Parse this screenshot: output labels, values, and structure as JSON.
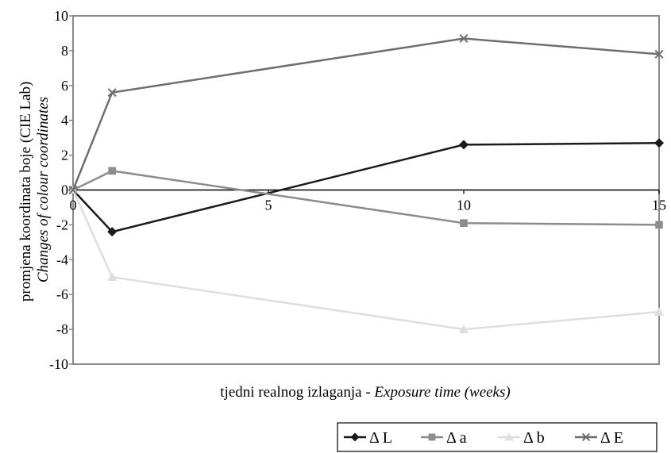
{
  "chart_data": {
    "type": "line",
    "xlabel_plain": "tjedni realnog izlaganja - ",
    "xlabel_italic": "Exposure time (weeks)",
    "ylabel_line1": "promjena koordinata boje (CIE Lab)",
    "ylabel_line2": "Changes of colour coordinates",
    "xlim": [
      0,
      15
    ],
    "ylim": [
      -10,
      10
    ],
    "xticks": [
      0,
      5,
      10,
      15
    ],
    "xtick_labels": [
      "0",
      "5",
      "10",
      "15"
    ],
    "yticks": [
      -10,
      -8,
      -6,
      -4,
      -2,
      0,
      2,
      4,
      6,
      8,
      10
    ],
    "ytick_labels": [
      "-10",
      "-8",
      "-6",
      "-4",
      "-2",
      "0",
      "2",
      "4",
      "6",
      "8",
      "10"
    ],
    "legend_position": "bottom-right",
    "series": [
      {
        "name": "Δ L",
        "marker": "diamond",
        "color": "#1a1a1a",
        "x": [
          0,
          1,
          10,
          15
        ],
        "y": [
          0,
          -2.4,
          2.6,
          2.7
        ]
      },
      {
        "name": "Δ a",
        "marker": "square",
        "color": "#8c8c8c",
        "x": [
          0,
          1,
          10,
          15
        ],
        "y": [
          0,
          1.1,
          -1.9,
          -2.0
        ]
      },
      {
        "name": "Δ b",
        "marker": "triangle",
        "color": "#dedede",
        "x": [
          0,
          1,
          10,
          15
        ],
        "y": [
          0,
          -5.0,
          -8.0,
          -7.0
        ]
      },
      {
        "name": "Δ E",
        "marker": "x",
        "color": "#6e6e6e",
        "x": [
          0,
          1,
          10,
          15
        ],
        "y": [
          0,
          5.6,
          8.7,
          7.8
        ]
      }
    ]
  }
}
